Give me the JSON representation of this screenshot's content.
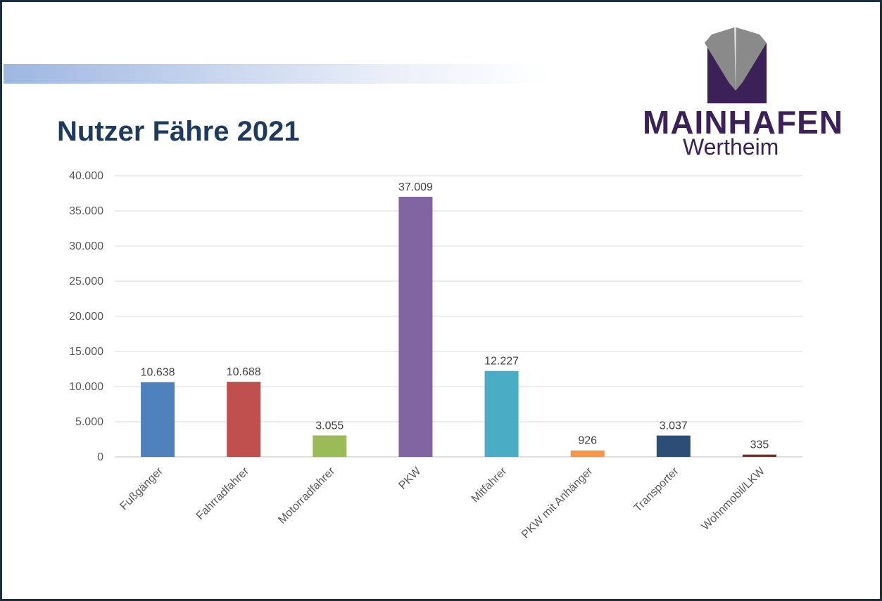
{
  "title": "Nutzer Fähre 2021",
  "logo": {
    "wordmark": "MAINHAFEN",
    "city": "Wertheim"
  },
  "chart_data": {
    "type": "bar",
    "title": "Nutzer Fähre 2021",
    "xlabel": "",
    "ylabel": "",
    "categories": [
      "Fußgänger",
      "Fahrradfahrer",
      "Motorradfahrer",
      "PKW",
      "Mitfahrer",
      "PKW mit Anhänger",
      "Transporter",
      "Wohnmobil/LKW"
    ],
    "values": [
      10638,
      10688,
      3055,
      37009,
      12227,
      926,
      3037,
      335
    ],
    "value_labels": [
      "10.638",
      "10.688",
      "3.055",
      "37.009",
      "12.227",
      "926",
      "3.037",
      "335"
    ],
    "colors": [
      "#4f81bd",
      "#c0504d",
      "#9bbb59",
      "#8064a2",
      "#4bacc6",
      "#f79646",
      "#2c4d75",
      "#772c2a"
    ],
    "ylim": [
      0,
      40000
    ],
    "yticks": [
      0,
      5000,
      10000,
      15000,
      20000,
      25000,
      30000,
      35000,
      40000
    ],
    "ytick_labels": [
      "0",
      "5.000",
      "10.000",
      "15.000",
      "20.000",
      "25.000",
      "30.000",
      "35.000",
      "40.000"
    ],
    "grid": true,
    "legend": "none"
  }
}
